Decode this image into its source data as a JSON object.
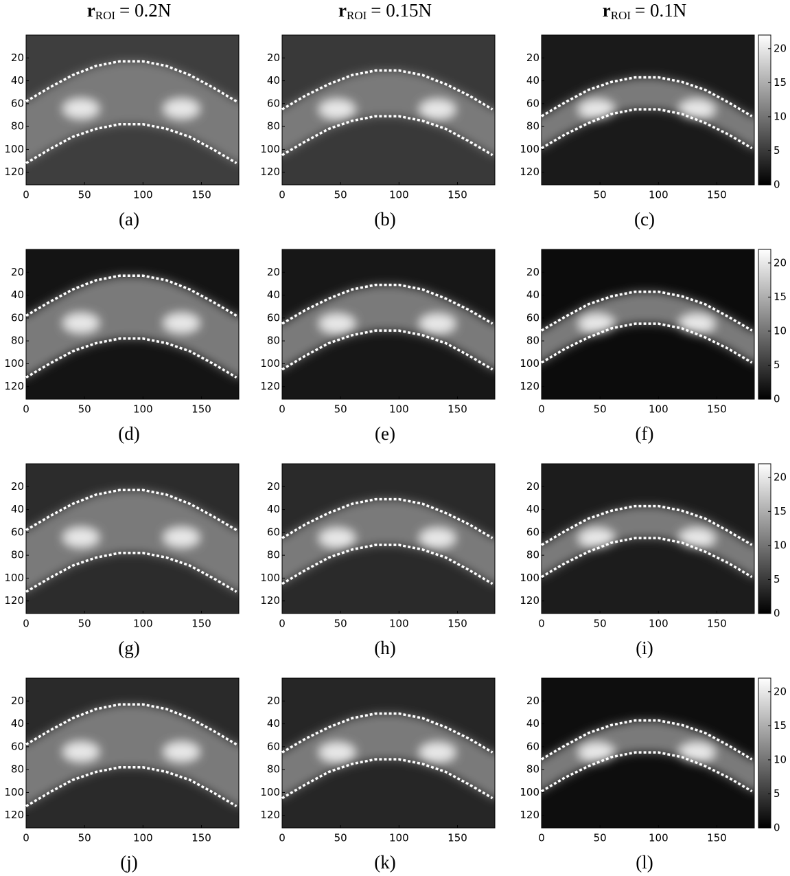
{
  "chart_data": [
    {
      "type": "heatmap",
      "label": "(a)",
      "title": {
        "main": "r",
        "sub": "ROI",
        "rest": "= 0.2N"
      },
      "x": [
        0,
        20,
        40,
        60,
        80,
        100,
        120,
        140,
        160,
        180
      ],
      "series": [
        {
          "color": "#ffffff",
          "values": [
            58,
            46,
            35,
            27,
            23,
            23,
            27,
            35,
            46,
            58
          ]
        },
        {
          "color": "#ffffff",
          "values": [
            112,
            100,
            89,
            82,
            78,
            78,
            82,
            89,
            100,
            112
          ]
        }
      ],
      "xlim": [
        0,
        182
      ],
      "ylim": [
        0,
        131
      ],
      "y_inverted": true,
      "xticks": [
        0,
        50,
        100,
        150
      ],
      "yticks": [
        20,
        40,
        60,
        80,
        100,
        120
      ]
    },
    {
      "type": "heatmap",
      "label": "(b)",
      "title": {
        "main": "r",
        "sub": "ROI",
        "rest": "= 0.15N"
      },
      "x": [
        0,
        20,
        40,
        60,
        80,
        100,
        120,
        140,
        160,
        180
      ],
      "series": [
        {
          "color": "#ffffff",
          "values": [
            65,
            53,
            43,
            35,
            31,
            31,
            35,
            43,
            53,
            65
          ]
        },
        {
          "color": "#ffffff",
          "values": [
            105,
            93,
            82,
            75,
            71,
            71,
            75,
            82,
            93,
            105
          ]
        }
      ],
      "xlim": [
        0,
        182
      ],
      "ylim": [
        0,
        131
      ],
      "y_inverted": true,
      "xticks": [
        0,
        50,
        100,
        150
      ],
      "yticks": [
        20,
        40,
        60,
        80,
        100,
        120
      ]
    },
    {
      "type": "heatmap",
      "label": "(c)",
      "title": {
        "main": "r",
        "sub": "ROI",
        "rest": "= 0.1N"
      },
      "x": [
        0,
        20,
        40,
        60,
        80,
        100,
        120,
        140,
        160,
        180
      ],
      "series": [
        {
          "color": "#ffffff",
          "values": [
            71,
            59,
            48,
            41,
            37,
            37,
            41,
            48,
            59,
            71
          ]
        },
        {
          "color": "#ffffff",
          "values": [
            99,
            87,
            77,
            69,
            65,
            65,
            69,
            77,
            87,
            99
          ]
        }
      ],
      "xlim": [
        0,
        182
      ],
      "ylim": [
        0,
        131
      ],
      "y_inverted": true,
      "xticks": [
        50,
        100,
        150
      ],
      "yticks": [
        20,
        40,
        60,
        80,
        100,
        120
      ],
      "colorbar": {
        "lim": [
          0,
          22
        ],
        "ticks": [
          0,
          5,
          10,
          15,
          20
        ]
      }
    },
    {
      "type": "heatmap",
      "label": "(d)",
      "x": [
        0,
        20,
        40,
        60,
        80,
        100,
        120,
        140,
        160,
        180
      ],
      "series": [
        {
          "color": "#ffffff",
          "values": [
            58,
            46,
            35,
            27,
            23,
            23,
            27,
            35,
            46,
            58
          ]
        },
        {
          "color": "#ffffff",
          "values": [
            112,
            100,
            89,
            82,
            78,
            78,
            82,
            89,
            100,
            112
          ]
        }
      ],
      "xlim": [
        0,
        182
      ],
      "ylim": [
        0,
        131
      ],
      "y_inverted": true,
      "xticks": [
        0,
        50,
        100,
        150
      ],
      "yticks": [
        20,
        40,
        60,
        80,
        100,
        120
      ]
    },
    {
      "type": "heatmap",
      "label": "(e)",
      "x": [
        0,
        20,
        40,
        60,
        80,
        100,
        120,
        140,
        160,
        180
      ],
      "series": [
        {
          "color": "#ffffff",
          "values": [
            65,
            53,
            43,
            35,
            31,
            31,
            35,
            43,
            53,
            65
          ]
        },
        {
          "color": "#ffffff",
          "values": [
            105,
            93,
            82,
            75,
            71,
            71,
            75,
            82,
            93,
            105
          ]
        }
      ],
      "xlim": [
        0,
        182
      ],
      "ylim": [
        0,
        131
      ],
      "y_inverted": true,
      "xticks": [
        0,
        50,
        100,
        150
      ],
      "yticks": [
        20,
        40,
        60,
        80,
        100,
        120
      ]
    },
    {
      "type": "heatmap",
      "label": "(f)",
      "x": [
        0,
        20,
        40,
        60,
        80,
        100,
        120,
        140,
        160,
        180
      ],
      "series": [
        {
          "color": "#ffffff",
          "values": [
            71,
            59,
            48,
            41,
            37,
            37,
            41,
            48,
            59,
            71
          ]
        },
        {
          "color": "#ffffff",
          "values": [
            99,
            87,
            77,
            69,
            65,
            65,
            69,
            77,
            87,
            99
          ]
        }
      ],
      "xlim": [
        0,
        182
      ],
      "ylim": [
        0,
        131
      ],
      "y_inverted": true,
      "xticks": [
        0,
        50,
        100,
        150
      ],
      "yticks": [
        20,
        40,
        60,
        80,
        100,
        120
      ],
      "colorbar": {
        "lim": [
          0,
          22
        ],
        "ticks": [
          0,
          5,
          10,
          15,
          20
        ]
      }
    },
    {
      "type": "heatmap",
      "label": "(g)",
      "x": [
        0,
        20,
        40,
        60,
        80,
        100,
        120,
        140,
        160,
        180
      ],
      "series": [
        {
          "color": "#ffffff",
          "values": [
            58,
            46,
            35,
            27,
            23,
            23,
            27,
            35,
            46,
            58
          ]
        },
        {
          "color": "#ffffff",
          "values": [
            112,
            100,
            89,
            82,
            78,
            78,
            82,
            89,
            100,
            112
          ]
        }
      ],
      "xlim": [
        0,
        182
      ],
      "ylim": [
        0,
        131
      ],
      "y_inverted": true,
      "xticks": [
        0,
        50,
        100,
        150
      ],
      "yticks": [
        20,
        40,
        60,
        80,
        100,
        120
      ]
    },
    {
      "type": "heatmap",
      "label": "(h)",
      "x": [
        0,
        20,
        40,
        60,
        80,
        100,
        120,
        140,
        160,
        180
      ],
      "series": [
        {
          "color": "#ffffff",
          "values": [
            65,
            53,
            43,
            35,
            31,
            31,
            35,
            43,
            53,
            65
          ]
        },
        {
          "color": "#ffffff",
          "values": [
            105,
            93,
            82,
            75,
            71,
            71,
            75,
            82,
            93,
            105
          ]
        }
      ],
      "xlim": [
        0,
        182
      ],
      "ylim": [
        0,
        131
      ],
      "y_inverted": true,
      "xticks": [
        0,
        50,
        100,
        150
      ],
      "yticks": [
        20,
        40,
        60,
        80,
        100,
        120
      ]
    },
    {
      "type": "heatmap",
      "label": "(i)",
      "x": [
        0,
        20,
        40,
        60,
        80,
        100,
        120,
        140,
        160,
        180
      ],
      "series": [
        {
          "color": "#ffffff",
          "values": [
            71,
            59,
            48,
            41,
            37,
            37,
            41,
            48,
            59,
            71
          ]
        },
        {
          "color": "#ffffff",
          "values": [
            99,
            87,
            77,
            69,
            65,
            65,
            69,
            77,
            87,
            99
          ]
        }
      ],
      "xlim": [
        0,
        182
      ],
      "ylim": [
        0,
        131
      ],
      "y_inverted": true,
      "xticks": [
        0,
        50,
        100,
        150
      ],
      "yticks": [
        20,
        40,
        60,
        80,
        100,
        120
      ],
      "colorbar": {
        "lim": [
          0,
          22
        ],
        "ticks": [
          0,
          5,
          10,
          15,
          20
        ]
      }
    },
    {
      "type": "heatmap",
      "label": "(j)",
      "x": [
        0,
        20,
        40,
        60,
        80,
        100,
        120,
        140,
        160,
        180
      ],
      "series": [
        {
          "color": "#ffffff",
          "values": [
            58,
            46,
            35,
            27,
            23,
            23,
            27,
            35,
            46,
            58
          ]
        },
        {
          "color": "#ffffff",
          "values": [
            112,
            100,
            89,
            82,
            78,
            78,
            82,
            89,
            100,
            112
          ]
        }
      ],
      "xlim": [
        0,
        182
      ],
      "ylim": [
        0,
        131
      ],
      "y_inverted": true,
      "xticks": [
        0,
        50,
        100,
        150
      ],
      "yticks": [
        20,
        40,
        60,
        80,
        100,
        120
      ]
    },
    {
      "type": "heatmap",
      "label": "(k)",
      "x": [
        0,
        20,
        40,
        60,
        80,
        100,
        120,
        140,
        160,
        180
      ],
      "series": [
        {
          "color": "#ffffff",
          "values": [
            65,
            53,
            43,
            35,
            31,
            31,
            35,
            43,
            53,
            65
          ]
        },
        {
          "color": "#ffffff",
          "values": [
            105,
            93,
            82,
            75,
            71,
            71,
            75,
            82,
            93,
            105
          ]
        }
      ],
      "xlim": [
        0,
        182
      ],
      "ylim": [
        0,
        131
      ],
      "y_inverted": true,
      "xticks": [
        0,
        50,
        100,
        150
      ],
      "yticks": [
        20,
        40,
        60,
        80,
        100,
        120
      ]
    },
    {
      "type": "heatmap",
      "label": "(l)",
      "x": [
        0,
        20,
        40,
        60,
        80,
        100,
        120,
        140,
        160,
        180
      ],
      "series": [
        {
          "color": "#ffffff",
          "values": [
            71,
            59,
            48,
            41,
            37,
            37,
            41,
            48,
            59,
            71
          ]
        },
        {
          "color": "#ffffff",
          "values": [
            99,
            87,
            77,
            69,
            65,
            65,
            69,
            77,
            87,
            99
          ]
        }
      ],
      "xlim": [
        0,
        182
      ],
      "ylim": [
        0,
        131
      ],
      "y_inverted": true,
      "xticks": [
        0,
        50,
        100,
        150
      ],
      "yticks": [
        20,
        40,
        60,
        80,
        100,
        120
      ],
      "colorbar": {
        "lim": [
          0,
          22
        ],
        "ticks": [
          0,
          5,
          10,
          15,
          20
        ]
      }
    }
  ]
}
